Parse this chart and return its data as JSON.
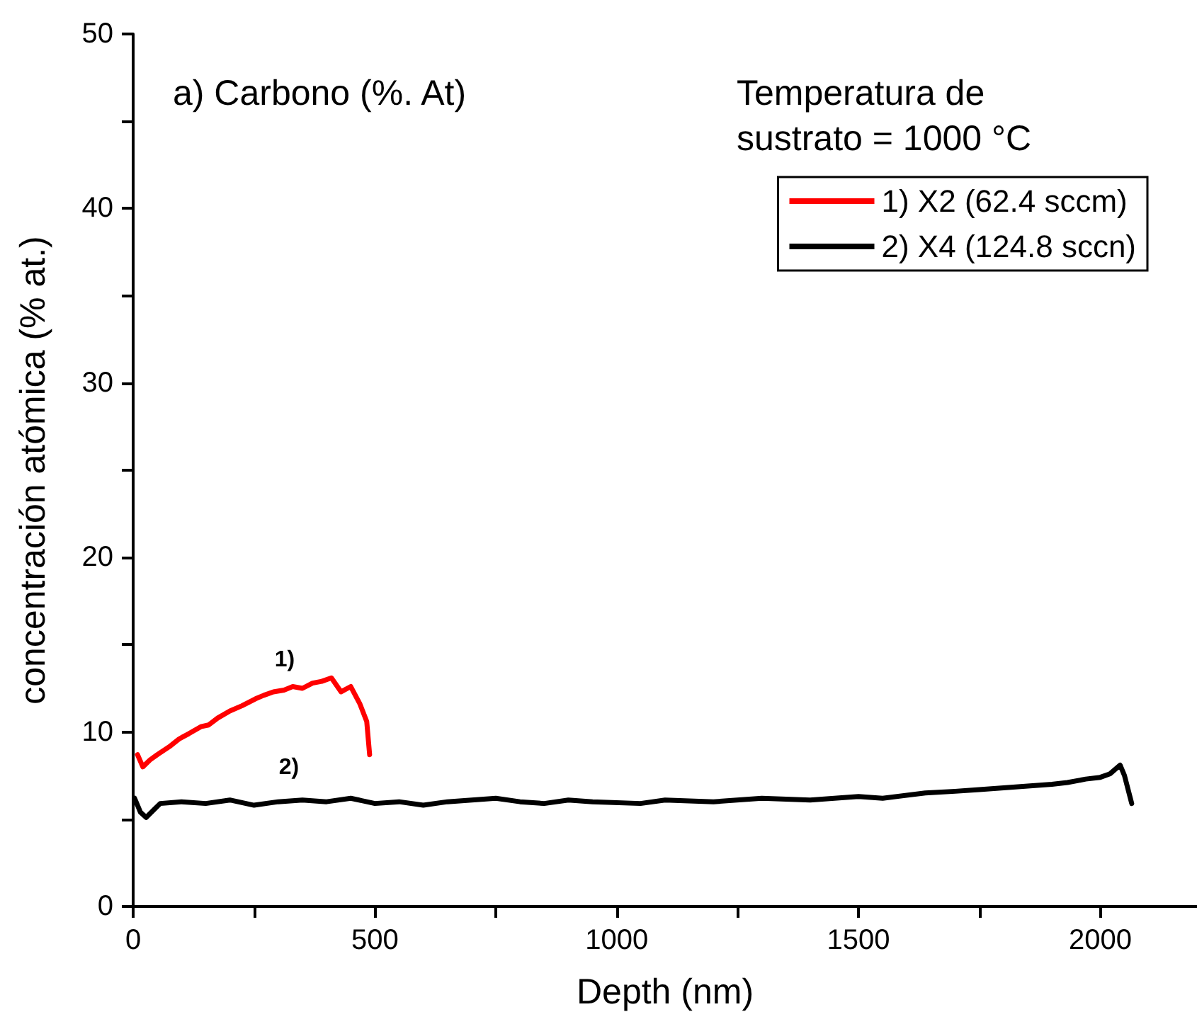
{
  "chart_data": {
    "type": "line",
    "xlabel": "Depth (nm)",
    "ylabel": "concentración atómica (% at.)",
    "annotations": [
      "a) Carbono (%. At)",
      "Temperatura de\nsustrato = 1000 °C",
      "1)",
      "2)"
    ],
    "xlim": [
      0,
      2200
    ],
    "xticks": [
      0,
      {
        "value": 250,
        "label": null
      },
      500,
      {
        "value": 750,
        "label": null
      },
      1000,
      {
        "value": 1250,
        "label": null
      },
      1500,
      {
        "value": 1750,
        "label": null
      },
      2000
    ],
    "ylim": [
      0,
      50
    ],
    "yticks": [
      0,
      {
        "value": 5,
        "label": null
      },
      10,
      {
        "value": 15,
        "label": null
      },
      20,
      {
        "value": 25,
        "label": null
      },
      30,
      {
        "value": 35,
        "label": null
      },
      40,
      {
        "value": 45,
        "label": null
      },
      50
    ],
    "grid": false,
    "legend": "top right",
    "marker": "none",
    "line_style": "solid",
    "series": [
      {
        "name": "1) X2 (62.4 sccm)",
        "color": "#ff0000",
        "x": [
          9,
          20,
          35,
          50,
          77,
          95,
          115,
          140,
          156,
          175,
          200,
          225,
          253,
          270,
          290,
          312,
          330,
          350,
          371,
          390,
          410,
          430,
          450,
          469,
          483,
          489
        ],
        "values": [
          8.7,
          8.0,
          8.4,
          8.7,
          9.2,
          9.6,
          9.9,
          10.3,
          10.4,
          10.8,
          11.2,
          11.5,
          11.9,
          12.1,
          12.3,
          12.4,
          12.6,
          12.5,
          12.8,
          12.9,
          13.1,
          12.3,
          12.6,
          11.6,
          10.6,
          8.7
        ]
      },
      {
        "name": "2) X4 (124.8 sccn)",
        "color": "#000000",
        "x": [
          3,
          15,
          27,
          45,
          56,
          100,
          150,
          200,
          250,
          300,
          350,
          400,
          450,
          500,
          550,
          600,
          650,
          700,
          750,
          800,
          850,
          900,
          950,
          1049,
          1100,
          1200,
          1300,
          1400,
          1500,
          1550,
          1638,
          1700,
          1750,
          1800,
          1850,
          1900,
          1932,
          1970,
          2000,
          2020,
          2041,
          2050,
          2065
        ],
        "values": [
          6.2,
          5.4,
          5.1,
          5.6,
          5.9,
          6.0,
          5.9,
          6.1,
          5.8,
          6.0,
          6.1,
          6.0,
          6.2,
          5.9,
          6.0,
          5.8,
          6.0,
          6.1,
          6.2,
          6.0,
          5.9,
          6.1,
          6.0,
          5.9,
          6.1,
          6.0,
          6.2,
          6.1,
          6.3,
          6.2,
          6.5,
          6.6,
          6.7,
          6.8,
          6.9,
          7.0,
          7.1,
          7.3,
          7.4,
          7.6,
          8.1,
          7.5,
          5.9
        ]
      }
    ]
  }
}
